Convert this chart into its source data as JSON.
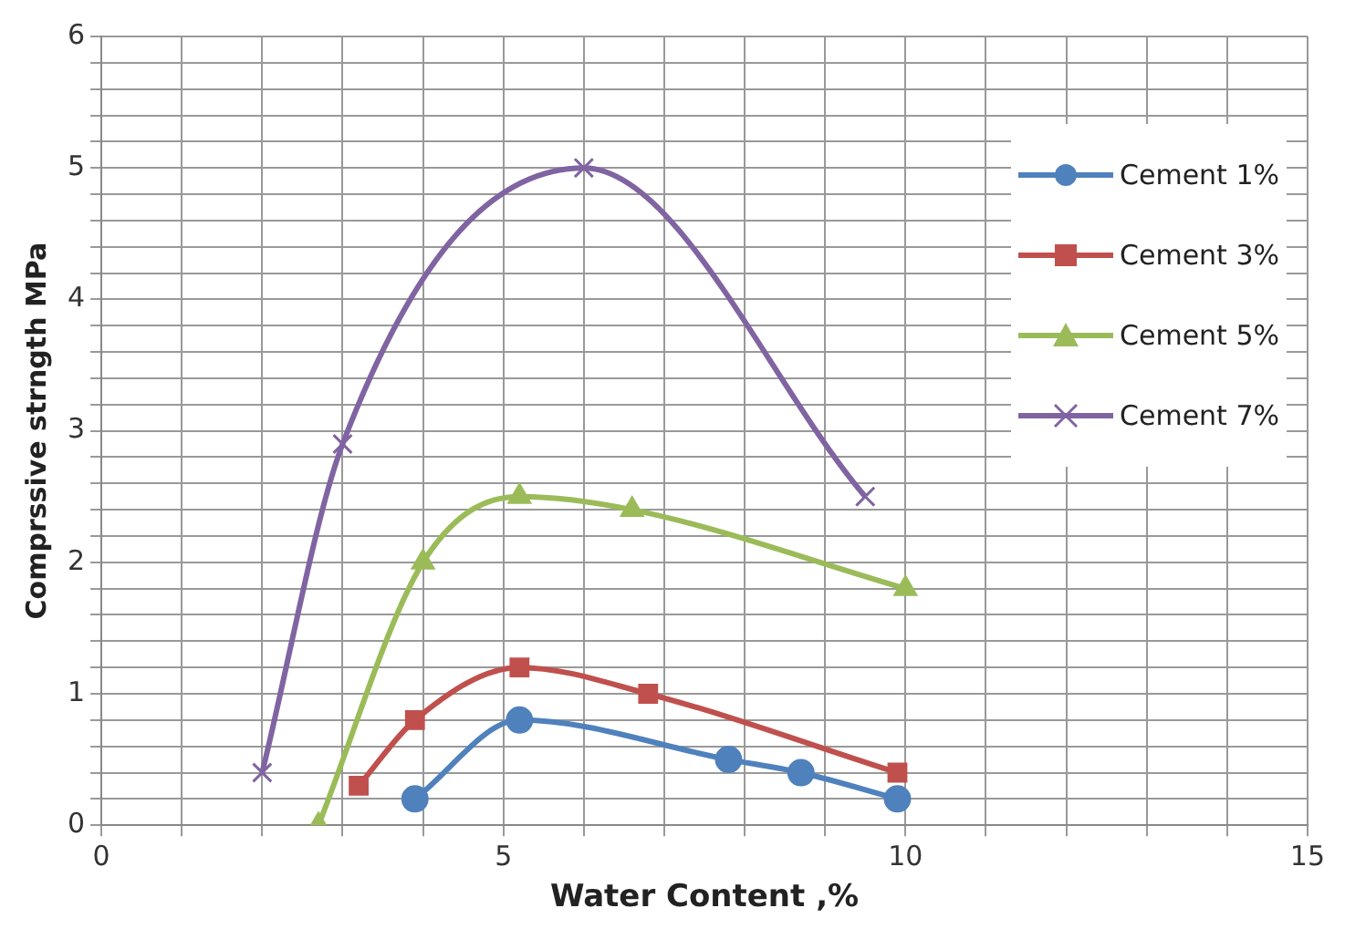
{
  "chart_data": {
    "type": "line",
    "xlabel": "Water Content ,%",
    "ylabel": "Comprssive strngth MPa",
    "xlim": [
      0,
      15
    ],
    "xticks": [
      0,
      {
        "value": 1,
        "label": null
      },
      {
        "value": 2,
        "label": null
      },
      {
        "value": 3,
        "label": null
      },
      {
        "value": 4,
        "label": null
      },
      5,
      {
        "value": 6,
        "label": null
      },
      {
        "value": 7,
        "label": null
      },
      {
        "value": 8,
        "label": null
      },
      {
        "value": 9,
        "label": null
      },
      10,
      {
        "value": 11,
        "label": null
      },
      {
        "value": 12,
        "label": null
      },
      {
        "value": 13,
        "label": null
      },
      {
        "value": 14,
        "label": null
      },
      15
    ],
    "ylim": [
      0,
      6
    ],
    "yticks": [
      0,
      {
        "value": 0.2,
        "label": null
      },
      {
        "value": 0.4,
        "label": null
      },
      {
        "value": 0.6,
        "label": null
      },
      {
        "value": 0.8,
        "label": null
      },
      1,
      {
        "value": 1.2,
        "label": null
      },
      {
        "value": 1.4,
        "label": null
      },
      {
        "value": 1.6,
        "label": null
      },
      {
        "value": 1.8,
        "label": null
      },
      2,
      {
        "value": 2.2,
        "label": null
      },
      {
        "value": 2.4,
        "label": null
      },
      {
        "value": 2.6,
        "label": null
      },
      {
        "value": 2.8,
        "label": null
      },
      3,
      {
        "value": 3.2,
        "label": null
      },
      {
        "value": 3.4,
        "label": null
      },
      {
        "value": 3.6,
        "label": null
      },
      {
        "value": 3.8,
        "label": null
      },
      4,
      {
        "value": 4.2,
        "label": null
      },
      {
        "value": 4.4,
        "label": null
      },
      {
        "value": 4.6,
        "label": null
      },
      {
        "value": 4.8,
        "label": null
      },
      5,
      {
        "value": 5.2,
        "label": null
      },
      {
        "value": 5.4,
        "label": null
      },
      {
        "value": 5.6,
        "label": null
      },
      {
        "value": 5.8,
        "label": null
      },
      6
    ],
    "grid": true,
    "legend": "top right",
    "series": [
      {
        "name": "Cement 1%",
        "color": "#4f81bd",
        "marker": "circle",
        "x": [
          3.9,
          5.2,
          7.8,
          8.7,
          9.9
        ],
        "values": [
          0.2,
          0.8,
          0.5,
          0.4,
          0.2
        ]
      },
      {
        "name": "Cement 3%",
        "color": "#c0504d",
        "marker": "square",
        "x": [
          3.2,
          3.9,
          5.2,
          6.8,
          9.9
        ],
        "values": [
          0.3,
          0.8,
          1.2,
          1.0,
          0.4
        ]
      },
      {
        "name": "Cement 5%",
        "color": "#9bbb59",
        "marker": "triangle",
        "x": [
          2.7,
          4.0,
          5.2,
          6.6,
          10
        ],
        "values": [
          0,
          2.0,
          2.5,
          2.4,
          1.8
        ]
      },
      {
        "name": "Cement 7%",
        "color": "#8064a2",
        "marker": "cross",
        "x": [
          2.0,
          3.0,
          6.0,
          9.5
        ],
        "values": [
          0.4,
          2.9,
          5.0,
          2.5
        ]
      }
    ]
  }
}
